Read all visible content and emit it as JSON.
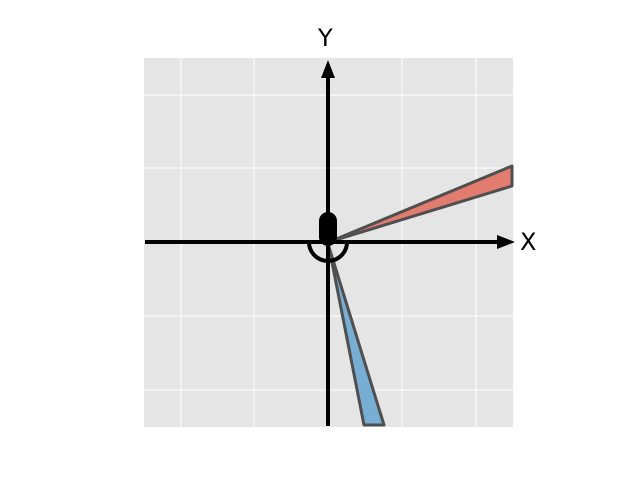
{
  "diagram": {
    "x_axis_label": "X",
    "y_axis_label": "Y",
    "colors": {
      "plot_background": "#e5e5e5",
      "grid": "#ffffff",
      "axes": "#000000",
      "red_wedge": "#e27c6f",
      "blue_wedge": "#78aed3",
      "wedge_outline": "#4f4f4f"
    },
    "elements": [
      {
        "name": "red-wedge",
        "color_key": "red_wedge"
      },
      {
        "name": "blue-wedge",
        "color_key": "blue_wedge"
      },
      {
        "name": "origin-rounded-marker",
        "color_key": "axes"
      },
      {
        "name": "origin-arc",
        "color_key": "axes"
      }
    ]
  }
}
